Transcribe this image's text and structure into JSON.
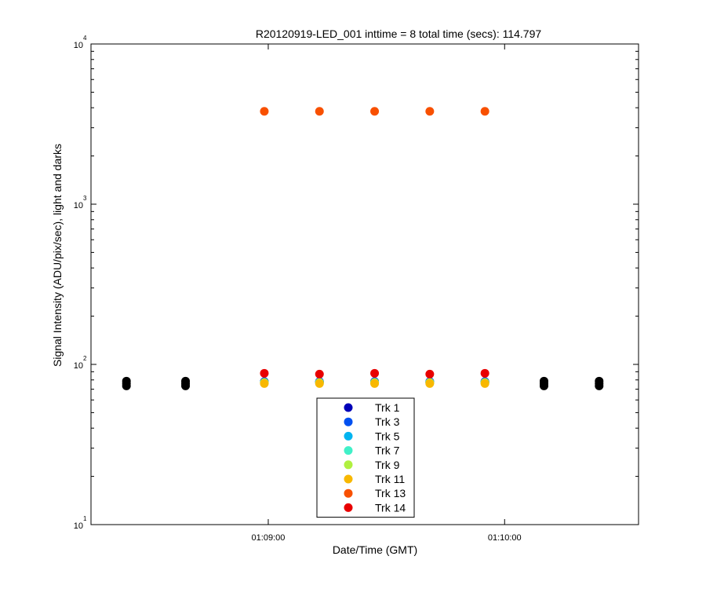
{
  "chart_data": {
    "type": "scatter",
    "title": "R20120919-LED_001 inttime = 8 total time (secs): 114.797",
    "xlabel": "Date/Time (GMT)",
    "ylabel": "Signal Intensity (ADU/pix/sec), light and darks",
    "yscale": "log",
    "ylim": [
      10,
      10000
    ],
    "xlim": [
      "01:08:15",
      "01:10:34"
    ],
    "x_ticks": [
      "01:09:00",
      "01:10:00"
    ],
    "y_ticks": [
      {
        "value": 10,
        "base": "10",
        "exp": "1"
      },
      {
        "value": 100,
        "base": "10",
        "exp": "2"
      },
      {
        "value": 1000,
        "base": "10",
        "exp": "3"
      },
      {
        "value": 10000,
        "base": "10",
        "exp": "4"
      }
    ],
    "legend_position": "bottom-center",
    "series": [
      {
        "name": "Trk 1",
        "color": "#0000b8",
        "x": [
          "01:08:59",
          "01:09:13",
          "01:09:27",
          "01:09:41",
          "01:09:55"
        ],
        "y": [
          78,
          78,
          78,
          78,
          78
        ]
      },
      {
        "name": "Trk 3",
        "color": "#0050f0",
        "x": [
          "01:08:59",
          "01:09:13",
          "01:09:27",
          "01:09:41",
          "01:09:55"
        ],
        "y": [
          78,
          78,
          78,
          78,
          78
        ]
      },
      {
        "name": "Trk 5",
        "color": "#00b4f0",
        "x": [
          "01:08:59",
          "01:09:13",
          "01:09:27",
          "01:09:41",
          "01:09:55"
        ],
        "y": [
          77,
          77,
          77,
          77,
          77
        ]
      },
      {
        "name": "Trk 7",
        "color": "#40f0c8",
        "x": [
          "01:08:59",
          "01:09:13",
          "01:09:27",
          "01:09:41",
          "01:09:55"
        ],
        "y": [
          77,
          77,
          77,
          77,
          77
        ]
      },
      {
        "name": "Trk 9",
        "color": "#b0f040",
        "x": [
          "01:08:59",
          "01:09:13",
          "01:09:27",
          "01:09:41",
          "01:09:55"
        ],
        "y": [
          77,
          77,
          77,
          77,
          77
        ]
      },
      {
        "name": "Trk 11",
        "color": "#f8b800",
        "x": [
          "01:08:59",
          "01:09:13",
          "01:09:27",
          "01:09:41",
          "01:09:55"
        ],
        "y": [
          76,
          76,
          76,
          76,
          76
        ]
      },
      {
        "name": "Trk 13",
        "color": "#f85000",
        "x": [
          "01:08:59",
          "01:09:13",
          "01:09:27",
          "01:09:41",
          "01:09:55"
        ],
        "y": [
          3800,
          3800,
          3800,
          3800,
          3800
        ]
      },
      {
        "name": "Trk 14",
        "color": "#e80000",
        "x": [
          "01:08:59",
          "01:09:13",
          "01:09:27",
          "01:09:41",
          "01:09:55"
        ],
        "y": [
          88,
          87,
          88,
          87,
          88
        ]
      },
      {
        "name": "darks",
        "color": "#000000",
        "in_legend": false,
        "x": [
          "01:08:24",
          "01:08:39",
          "01:10:10",
          "01:10:24"
        ],
        "y": [
          76,
          76,
          76,
          76
        ]
      }
    ]
  }
}
